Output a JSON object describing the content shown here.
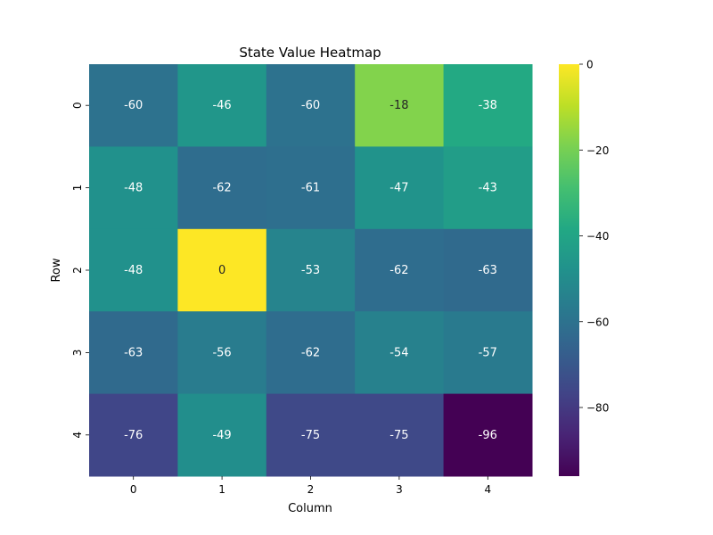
{
  "chart_data": {
    "type": "heatmap",
    "title": "State Value Heatmap",
    "xlabel": "Column",
    "ylabel": "Row",
    "x_categories": [
      "0",
      "1",
      "2",
      "3",
      "4"
    ],
    "y_categories": [
      "0",
      "1",
      "2",
      "3",
      "4"
    ],
    "values": [
      [
        -60,
        -46,
        -60,
        -18,
        -38
      ],
      [
        -48,
        -62,
        -61,
        -47,
        -43
      ],
      [
        -48,
        0,
        -53,
        -62,
        -63
      ],
      [
        -63,
        -56,
        -62,
        -54,
        -57
      ],
      [
        -76,
        -49,
        -75,
        -75,
        -96
      ]
    ],
    "colormap": "viridis",
    "vmin": -96,
    "vmax": 0,
    "colorbar_ticks": [
      0,
      -20,
      -40,
      -60,
      -80
    ],
    "colorbar_tick_labels": [
      "0",
      "−20",
      "−40",
      "−60",
      "−80"
    ],
    "annotations": true,
    "grid": false
  }
}
